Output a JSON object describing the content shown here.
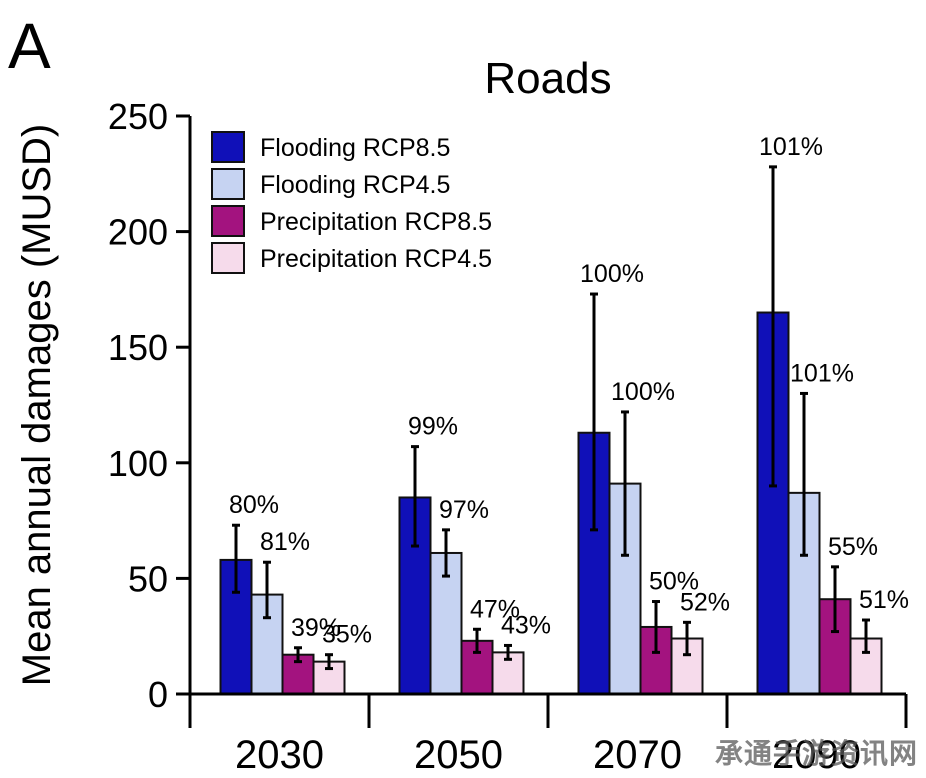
{
  "panel_label": "A",
  "watermark": "承通手游资讯网",
  "chart_data": {
    "type": "bar",
    "title": "Roads",
    "ylabel": "Mean annual damages (MUSD)",
    "xlabel": "",
    "ylim": [
      0,
      250
    ],
    "yticks": [
      0,
      50,
      100,
      150,
      200,
      250
    ],
    "categories": [
      "2030",
      "2050",
      "2070",
      "2090"
    ],
    "legend_position": "top-left",
    "series": [
      {
        "name": "Flooding RCP8.5",
        "color": "#1010b8",
        "values": [
          58,
          85,
          113,
          165
        ],
        "error_low": [
          44,
          64,
          71,
          90
        ],
        "error_high": [
          73,
          107,
          173,
          228
        ],
        "labels": [
          "80%",
          "99%",
          "100%",
          "101%"
        ]
      },
      {
        "name": "Flooding RCP4.5",
        "color": "#c6d3f2",
        "values": [
          43,
          61,
          91,
          87
        ],
        "error_low": [
          33,
          51,
          60,
          60
        ],
        "error_high": [
          57,
          71,
          122,
          130
        ],
        "labels": [
          "81%",
          "97%",
          "100%",
          "101%"
        ]
      },
      {
        "name": "Precipitation RCP8.5",
        "color": "#a3137f",
        "values": [
          17,
          23,
          29,
          41
        ],
        "error_low": [
          14,
          18,
          18,
          27
        ],
        "error_high": [
          20,
          28,
          40,
          55
        ],
        "labels": [
          "39%",
          "47%",
          "50%",
          "55%"
        ]
      },
      {
        "name": "Precipitation RCP4.5",
        "color": "#f6dbeb",
        "values": [
          14,
          18,
          24,
          24
        ],
        "error_low": [
          11,
          15,
          17,
          18
        ],
        "error_high": [
          17,
          21,
          31,
          32
        ],
        "labels": [
          "35%",
          "43%",
          "52%",
          "51%"
        ]
      }
    ]
  }
}
